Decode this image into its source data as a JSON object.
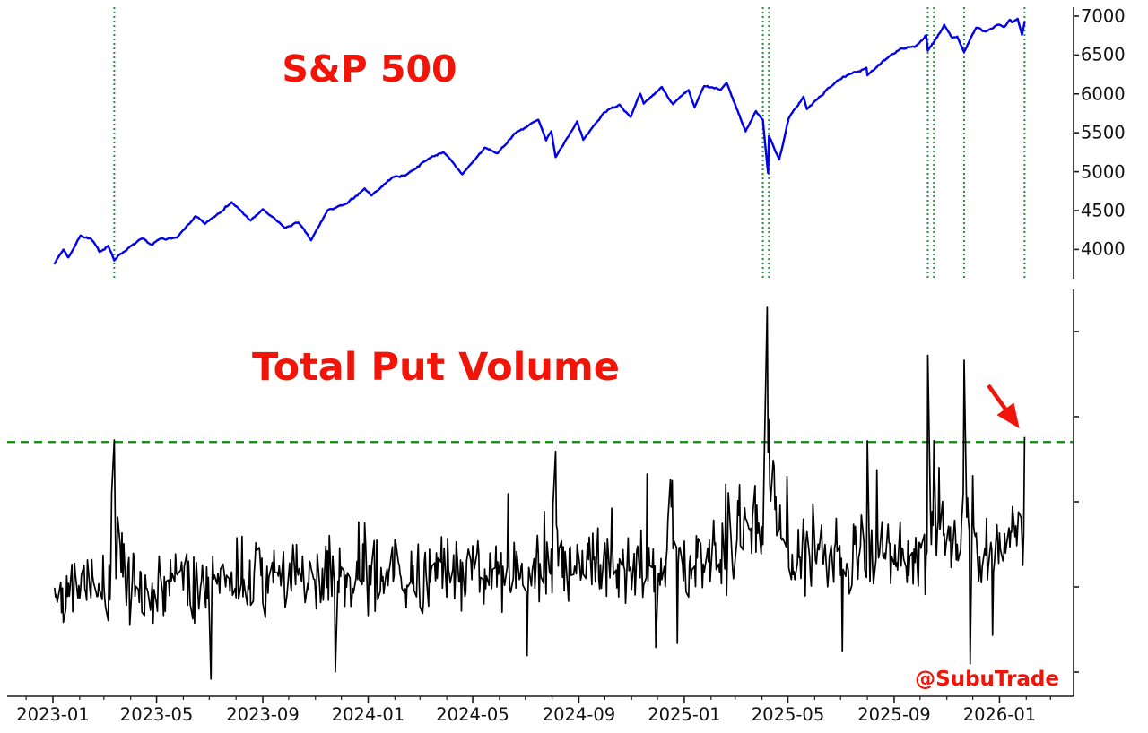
{
  "figure": {
    "watermark": "@SubuTrade",
    "colors": {
      "sp500_line": "#0202e8",
      "put_line": "#000000",
      "event_line": "#2a8f3c",
      "threshold_line": "#0a8c0a",
      "title_red": "#f01508",
      "axis": "#1a1a1a",
      "tick_label": "#111111",
      "arrow_red": "#f01508"
    }
  },
  "top_panel": {
    "title": "S&P 500",
    "y_tick_labels": [
      "7000",
      "6500",
      "6000",
      "5500",
      "5000",
      "4500",
      "4000"
    ]
  },
  "bottom_panel": {
    "title": "Total Put Volume",
    "right_tick_count": 5
  },
  "x_axis": {
    "tick_labels": [
      "2023-01",
      "2023-05",
      "2023-09",
      "2024-01",
      "2024-05",
      "2024-09",
      "2025-01",
      "2025-05",
      "2025-09",
      "2026-01"
    ],
    "tick_dates": [
      "2023-01-01",
      "2023-05-01",
      "2023-09-01",
      "2024-01-01",
      "2024-05-01",
      "2024-09-01",
      "2025-01-01",
      "2025-05-01",
      "2025-09-01",
      "2026-01-01"
    ]
  },
  "chart_data": [
    {
      "type": "line",
      "title": "S&P 500",
      "legend_position": "none",
      "grid": false,
      "ylim": [
        3625,
        7115
      ],
      "y_ticks": [
        4000,
        4500,
        5000,
        5500,
        6000,
        6500,
        7000
      ],
      "x_range": [
        "2023-01-03",
        "2026-01-30"
      ],
      "event_dates": [
        "2023-03-13",
        "2025-04-02",
        "2025-04-09",
        "2025-10-10",
        "2025-10-17",
        "2025-11-21",
        "2026-01-30"
      ],
      "points": [
        [
          "2023-01-03",
          3824
        ],
        [
          "2023-01-13",
          3999
        ],
        [
          "2023-01-19",
          3898
        ],
        [
          "2023-02-02",
          4180
        ],
        [
          "2023-02-14",
          4136
        ],
        [
          "2023-02-24",
          3970
        ],
        [
          "2023-03-06",
          4048
        ],
        [
          "2023-03-13",
          3856
        ],
        [
          "2023-03-17",
          3917
        ],
        [
          "2023-03-24",
          3971
        ],
        [
          "2023-04-14",
          4138
        ],
        [
          "2023-04-26",
          4056
        ],
        [
          "2023-05-05",
          4136
        ],
        [
          "2023-05-25",
          4151
        ],
        [
          "2023-06-15",
          4426
        ],
        [
          "2023-06-26",
          4329
        ],
        [
          "2023-07-27",
          4607
        ],
        [
          "2023-08-18",
          4370
        ],
        [
          "2023-09-01",
          4516
        ],
        [
          "2023-09-27",
          4274
        ],
        [
          "2023-10-12",
          4350
        ],
        [
          "2023-10-27",
          4117
        ],
        [
          "2023-11-15",
          4503
        ],
        [
          "2023-12-07",
          4586
        ],
        [
          "2023-12-28",
          4783
        ],
        [
          "2024-01-05",
          4697
        ],
        [
          "2024-01-29",
          4928
        ],
        [
          "2024-02-13",
          4953
        ],
        [
          "2024-03-12",
          5175
        ],
        [
          "2024-03-28",
          5254
        ],
        [
          "2024-04-19",
          4967
        ],
        [
          "2024-05-15",
          5308
        ],
        [
          "2024-05-30",
          5235
        ],
        [
          "2024-06-18",
          5487
        ],
        [
          "2024-07-16",
          5667
        ],
        [
          "2024-07-25",
          5399
        ],
        [
          "2024-07-31",
          5522
        ],
        [
          "2024-08-05",
          5186
        ],
        [
          "2024-08-30",
          5648
        ],
        [
          "2024-09-06",
          5408
        ],
        [
          "2024-09-30",
          5762
        ],
        [
          "2024-10-18",
          5865
        ],
        [
          "2024-10-31",
          5705
        ],
        [
          "2024-11-11",
          6001
        ],
        [
          "2024-11-15",
          5871
        ],
        [
          "2024-12-06",
          6090
        ],
        [
          "2024-12-19",
          5867
        ],
        [
          "2025-01-06",
          6047
        ],
        [
          "2025-01-13",
          5827
        ],
        [
          "2025-01-24",
          6101
        ],
        [
          "2025-02-12",
          6052
        ],
        [
          "2025-02-19",
          6144
        ],
        [
          "2025-03-13",
          5521
        ],
        [
          "2025-03-25",
          5777
        ],
        [
          "2025-04-02",
          5671
        ],
        [
          "2025-04-08",
          4983
        ],
        [
          "2025-04-09",
          5457
        ],
        [
          "2025-04-21",
          5158
        ],
        [
          "2025-05-02",
          5687
        ],
        [
          "2025-05-19",
          5963
        ],
        [
          "2025-05-23",
          5803
        ],
        [
          "2025-06-27",
          6173
        ],
        [
          "2025-07-31",
          6339
        ],
        [
          "2025-08-01",
          6238
        ],
        [
          "2025-08-28",
          6502
        ],
        [
          "2025-09-11",
          6587
        ],
        [
          "2025-09-25",
          6605
        ],
        [
          "2025-10-08",
          6754
        ],
        [
          "2025-10-10",
          6552
        ],
        [
          "2025-10-17",
          6664
        ],
        [
          "2025-10-29",
          6890
        ],
        [
          "2025-11-07",
          6729
        ],
        [
          "2025-11-13",
          6737
        ],
        [
          "2025-11-21",
          6539
        ],
        [
          "2025-12-05",
          6850
        ],
        [
          "2025-12-16",
          6800
        ],
        [
          "2025-12-31",
          6890
        ],
        [
          "2026-01-07",
          6865
        ],
        [
          "2026-01-13",
          6955
        ],
        [
          "2026-01-16",
          6920
        ],
        [
          "2026-01-22",
          6965
        ],
        [
          "2026-01-27",
          6760
        ],
        [
          "2026-01-30",
          6925
        ]
      ]
    },
    {
      "type": "line",
      "title": "Total Put Volume",
      "legend_position": "none",
      "grid": false,
      "ylim": [
        0,
        1
      ],
      "threshold_level": 0.625,
      "x_range": [
        "2023-01-03",
        "2026-01-30"
      ],
      "baseline_drift": [
        [
          "2023-01-03",
          0.26
        ],
        [
          "2024-06-03",
          0.3
        ],
        [
          "2025-01-02",
          0.325
        ],
        [
          "2026-01-30",
          0.35
        ]
      ],
      "spikes": [
        [
          "2023-03-10",
          0.5
        ],
        [
          "2023-03-13",
          0.63
        ],
        [
          "2023-03-14",
          0.46
        ],
        [
          "2023-03-17",
          0.44
        ],
        [
          "2024-08-02",
          0.47
        ],
        [
          "2024-08-05",
          0.602
        ],
        [
          "2024-08-06",
          0.42
        ],
        [
          "2024-12-18",
          0.53
        ],
        [
          "2025-02-21",
          0.5
        ],
        [
          "2025-03-06",
          0.52
        ],
        [
          "2025-04-03",
          0.5
        ],
        [
          "2025-04-04",
          0.63
        ],
        [
          "2025-04-07",
          0.956
        ],
        [
          "2025-04-08",
          0.6
        ],
        [
          "2025-04-09",
          0.68
        ],
        [
          "2025-04-10",
          0.52
        ],
        [
          "2025-04-11",
          0.48
        ],
        [
          "2025-08-01",
          0.628
        ],
        [
          "2025-10-10",
          0.838
        ],
        [
          "2025-10-16",
          0.42
        ],
        [
          "2025-10-17",
          0.628
        ],
        [
          "2025-11-20",
          0.5
        ],
        [
          "2025-11-21",
          0.826
        ],
        [
          "2025-11-24",
          0.44
        ],
        [
          "2026-01-29",
          0.4
        ],
        [
          "2026-01-30",
          0.636
        ]
      ],
      "low_volume_days": [
        [
          "2023-07-03",
          0.042
        ],
        [
          "2023-11-24",
          0.06
        ],
        [
          "2024-07-03",
          0.1
        ],
        [
          "2024-11-29",
          0.12
        ],
        [
          "2024-12-24",
          0.13
        ],
        [
          "2025-07-03",
          0.11
        ],
        [
          "2025-11-28",
          0.08
        ],
        [
          "2025-12-24",
          0.15
        ]
      ],
      "elevated_ranges": [
        [
          "2023-03-09",
          "2023-03-24",
          0.07
        ],
        [
          "2024-08-02",
          "2024-08-09",
          0.06
        ],
        [
          "2024-12-16",
          "2024-12-20",
          0.05
        ],
        [
          "2025-03-03",
          "2025-04-30",
          0.1
        ],
        [
          "2025-04-03",
          "2025-04-17",
          0.1
        ],
        [
          "2025-10-10",
          "2025-11-05",
          0.08
        ],
        [
          "2025-11-17",
          "2025-12-05",
          0.08
        ],
        [
          "2026-01-12",
          "2026-01-30",
          0.06
        ]
      ],
      "noise": {
        "seed": 42,
        "amplitude": 0.105,
        "burst_prob": 0.08,
        "burst_scale": 0.16
      }
    }
  ]
}
